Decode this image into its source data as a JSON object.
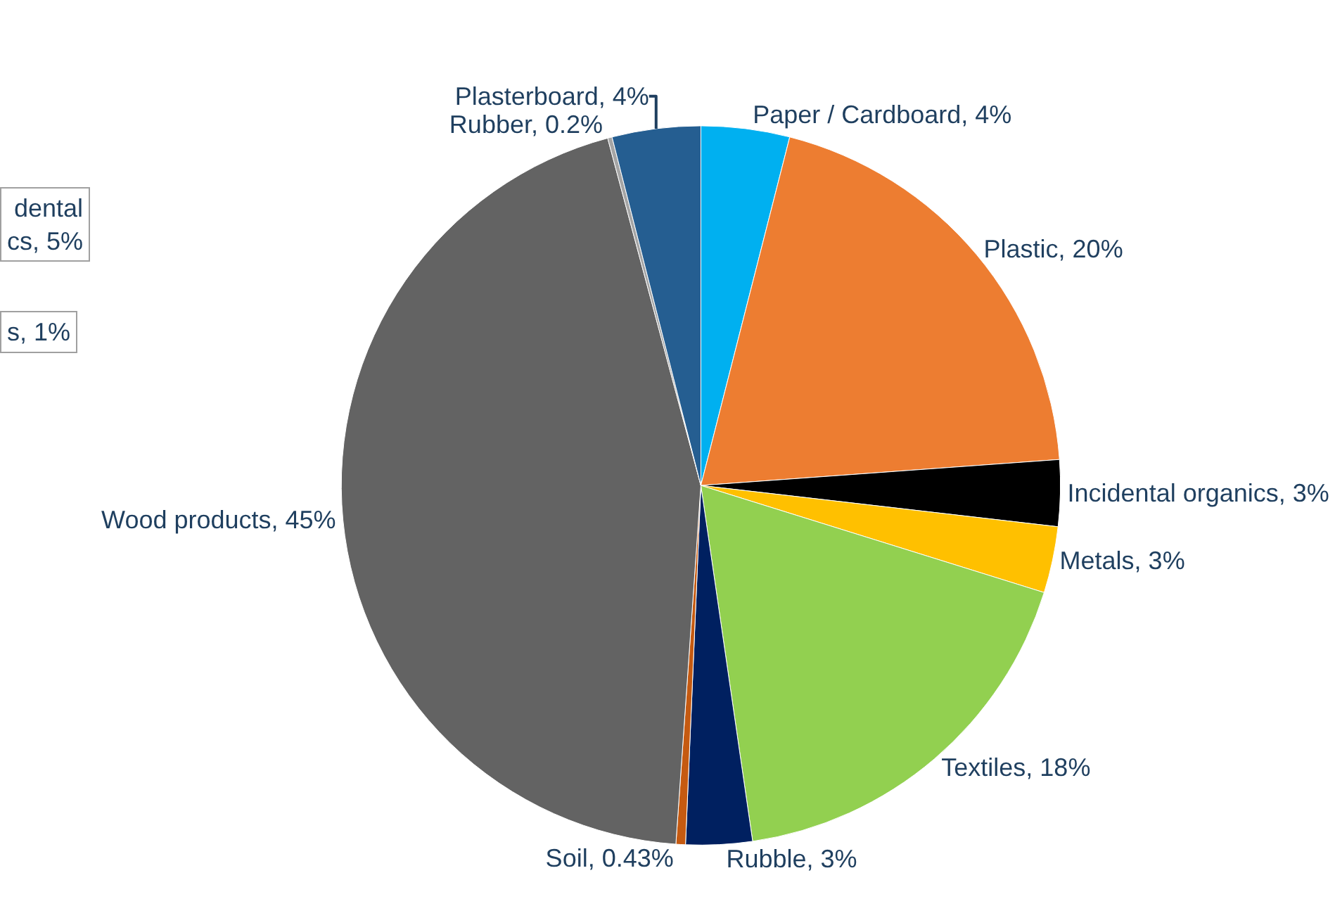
{
  "chart_data": {
    "type": "pie",
    "categories": [
      "Paper / Cardboard",
      "Plastic",
      "Incidental organics",
      "Metals",
      "Textiles",
      "Rubble",
      "Soil",
      "Wood products",
      "Rubber",
      "Plasterboard"
    ],
    "values": [
      4,
      20,
      3,
      3,
      18,
      3,
      0.43,
      45,
      0.2,
      4
    ],
    "value_labels": [
      "4%",
      "20%",
      "3%",
      "3%",
      "18%",
      "3%",
      "0.43%",
      "45%",
      "0.2%",
      "4%"
    ],
    "colors": [
      "#00b0f0",
      "#ed7d31",
      "#000000",
      "#ffc000",
      "#92d050",
      "#002060",
      "#c55a11",
      "#636363",
      "#a5a5a5",
      "#255e91"
    ],
    "legend": false,
    "annotations": [
      "dental\ncs, 5%",
      "s, 1%"
    ]
  }
}
